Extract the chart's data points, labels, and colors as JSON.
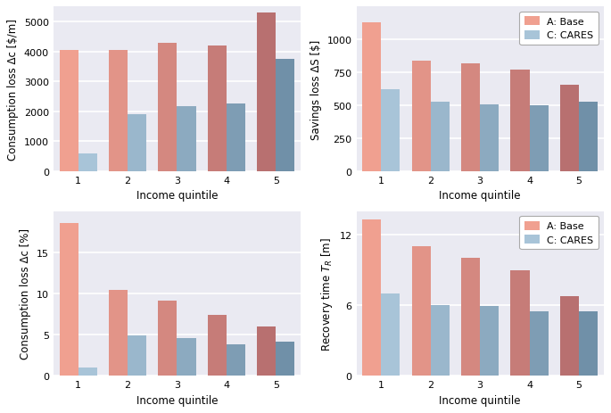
{
  "quintiles": [
    1,
    2,
    3,
    4,
    5
  ],
  "panel_tl": {
    "base": [
      4050,
      4050,
      4300,
      4200,
      5300
    ],
    "cares": [
      600,
      1900,
      2170,
      2250,
      3750
    ],
    "ylabel": "Consumption loss Δc [$/m]",
    "xlabel": "Income quintile",
    "ylim": [
      0,
      5500
    ],
    "yticks": [
      0,
      1000,
      2000,
      3000,
      4000,
      5000
    ]
  },
  "panel_tr": {
    "base": [
      1130,
      840,
      820,
      770,
      660
    ],
    "cares": [
      625,
      525,
      510,
      500,
      530
    ],
    "ylabel": "Savings loss ΔS [$]",
    "xlabel": "Income quintile",
    "ylim": [
      0,
      1250
    ],
    "yticks": [
      0,
      250,
      500,
      750,
      1000
    ],
    "legend_labels": [
      "A: Base",
      "C: CARES"
    ]
  },
  "panel_bl": {
    "base": [
      18.5,
      10.4,
      9.1,
      7.4,
      6.0
    ],
    "cares": [
      1.0,
      4.9,
      4.6,
      3.8,
      4.1
    ],
    "ylabel": "Consumption loss Δc [%]",
    "xlabel": "Income quintile",
    "ylim": [
      0,
      20
    ],
    "yticks": [
      0,
      5,
      10,
      15
    ]
  },
  "panel_br": {
    "base": [
      13.3,
      11.0,
      10.0,
      9.0,
      6.8
    ],
    "cares": [
      7.0,
      6.0,
      5.9,
      5.5,
      5.5
    ],
    "ylabel": "Recovery time $T_R$ [m]",
    "xlabel": "Income quintile",
    "ylim": [
      0,
      14
    ],
    "yticks": [
      0,
      6,
      12
    ],
    "legend_labels": [
      "A: Base",
      "C: CARES"
    ]
  },
  "color_base_light": "#F0A090",
  "color_cares_light": "#A8C4D8",
  "color_base_dark": "#B87070",
  "color_cares_dark": "#7090A8",
  "bar_width": 0.38,
  "grid_color": "#FFFFFF",
  "bg_color": "#EAEAF2",
  "fig_bg": "#FFFFFF",
  "spine_color": "#CCCCCC"
}
